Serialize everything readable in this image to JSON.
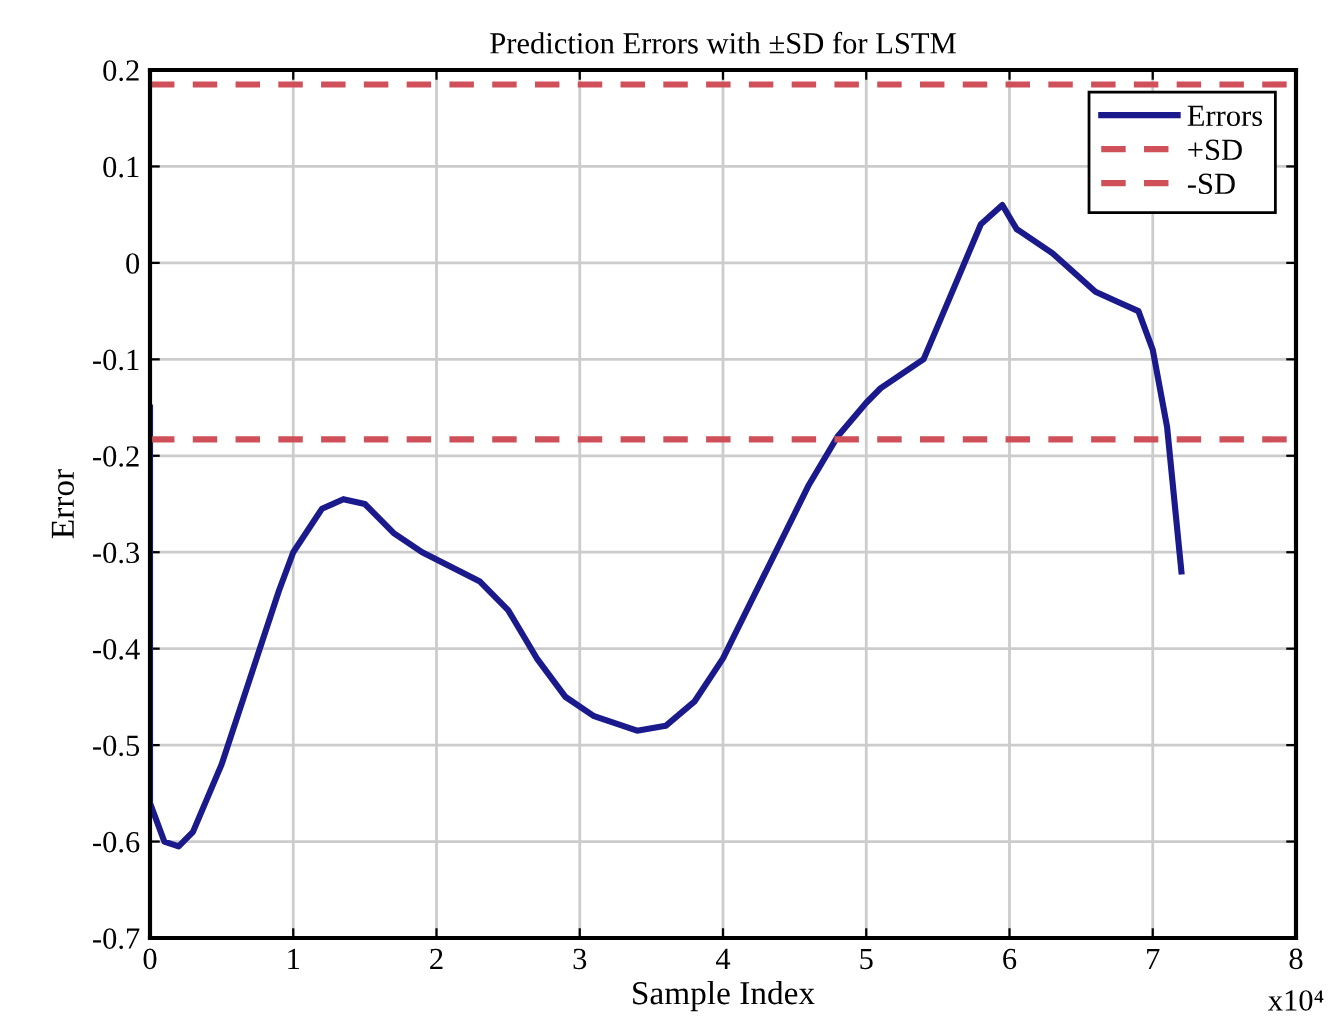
{
  "chart_data": {
    "type": "line",
    "title": "Prediction Errors with ±SD for LSTM",
    "xlabel": "Sample Index",
    "ylabel": "Error",
    "annotations": [
      "x10⁴"
    ],
    "series": [
      {
        "name": "Errors",
        "color": "#1a1a8c",
        "x": [
          0,
          0,
          0.1,
          0.2,
          0.3,
          0.5,
          0.7,
          0.9,
          1.0,
          1.2,
          1.35,
          1.5,
          1.7,
          1.9,
          2.1,
          2.3,
          2.5,
          2.7,
          2.9,
          3.1,
          3.4,
          3.6,
          3.8,
          4.0,
          4.2,
          4.4,
          4.6,
          4.8,
          5.0,
          5.1,
          5.4,
          5.6,
          5.8,
          5.95,
          6.05,
          6.3,
          6.6,
          6.75,
          6.9,
          7.0,
          7.1,
          7.2
        ],
        "values": [
          -0.15,
          -0.56,
          -0.6,
          -0.605,
          -0.59,
          -0.52,
          -0.43,
          -0.34,
          -0.3,
          -0.255,
          -0.245,
          -0.25,
          -0.28,
          -0.3,
          -0.315,
          -0.33,
          -0.36,
          -0.41,
          -0.45,
          -0.47,
          -0.485,
          -0.48,
          -0.455,
          -0.41,
          -0.35,
          -0.29,
          -0.23,
          -0.18,
          -0.145,
          -0.13,
          -0.1,
          -0.03,
          0.04,
          0.06,
          0.035,
          0.01,
          -0.03,
          -0.04,
          -0.05,
          -0.09,
          -0.17,
          -0.32
        ]
      }
    ],
    "ref_lines": [
      {
        "axis": "y",
        "value": 0.185,
        "label": "+SD",
        "color": "#d0505a",
        "line_style": "dashed"
      },
      {
        "axis": "y",
        "value": -0.183,
        "label": "-SD",
        "color": "#d0505a",
        "line_style": "dashed"
      }
    ],
    "xlim": [
      0,
      8
    ],
    "xticks": [
      0,
      1,
      2,
      3,
      4,
      5,
      6,
      7,
      8
    ],
    "ylim": [
      -0.7,
      0.2
    ],
    "yticks": [
      -0.7,
      -0.6,
      -0.5,
      -0.4,
      -0.3,
      -0.2,
      -0.1,
      0,
      0.1,
      0.2
    ],
    "grid": true,
    "legend": "top right",
    "marker": "none",
    "line_style": "solid"
  }
}
